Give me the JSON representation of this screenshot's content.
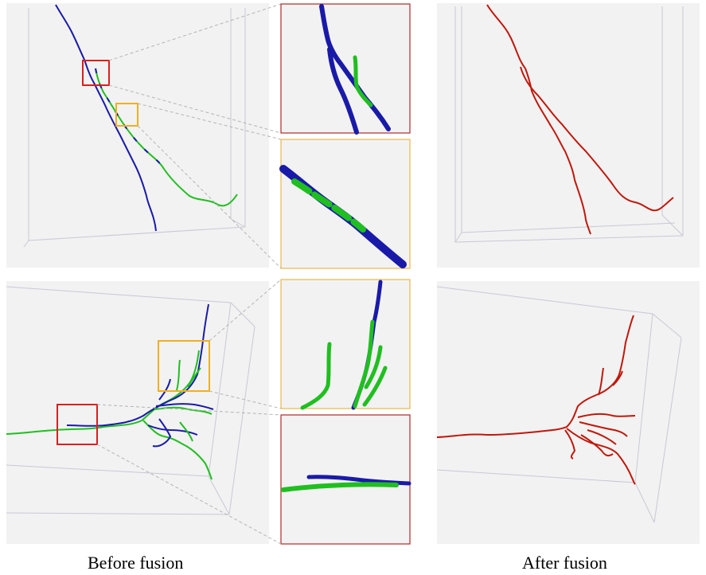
{
  "captions": {
    "before": "Before fusion",
    "after": "After fusion"
  },
  "colors": {
    "panel_bg": "#f2f2f2",
    "box_edge": "#c8c8d4",
    "source_a": "#1a1aa8",
    "source_b": "#1fbf1f",
    "fused": "#c0180c",
    "highlight_red": "#d91f1f",
    "highlight_orange": "#f0b020",
    "inset_red_border": "#b02a2a",
    "inset_orange_border": "#e8b84a",
    "leader_line": "#b4b4b4"
  },
  "legend_semantics": {
    "source_a_color_name": "blue",
    "source_b_color_name": "green",
    "fused_color_name": "red"
  }
}
